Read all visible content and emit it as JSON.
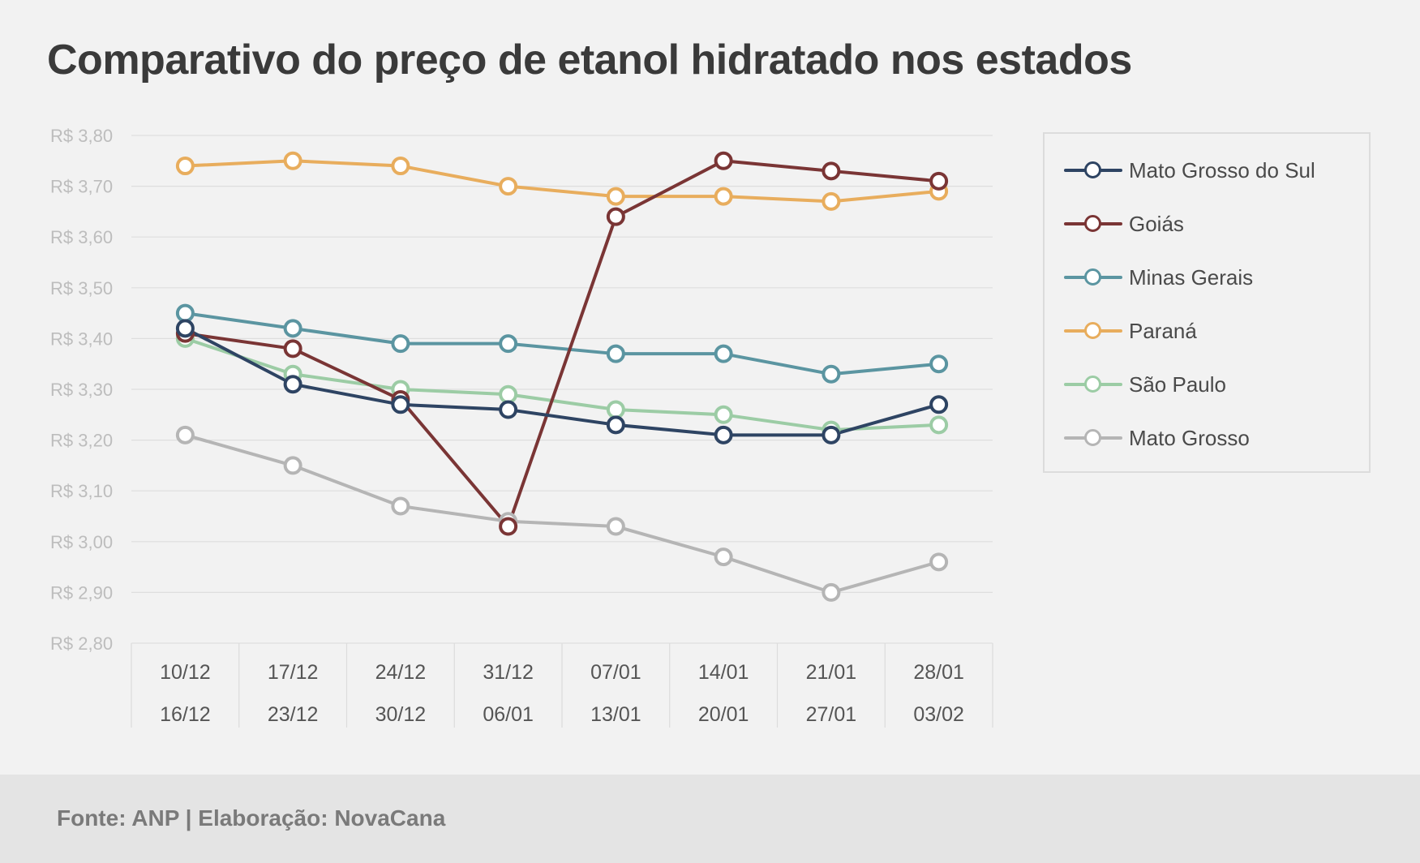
{
  "title": "Comparativo do preço de etanol hidratado nos estados",
  "source": "Fonte: ANP | Elaboração: NovaCana",
  "chart_data": {
    "type": "line",
    "title": "Comparativo do preço de etanol hidratado nos estados",
    "categories": [
      [
        "10/12",
        "16/12"
      ],
      [
        "17/12",
        "23/12"
      ],
      [
        "24/12",
        "30/12"
      ],
      [
        "31/12",
        "06/01"
      ],
      [
        "07/01",
        "13/01"
      ],
      [
        "14/01",
        "20/01"
      ],
      [
        "21/01",
        "27/01"
      ],
      [
        "28/01",
        "03/02"
      ]
    ],
    "ylim": [
      2.8,
      3.8
    ],
    "yticks": [
      2.8,
      2.9,
      3.0,
      3.1,
      3.2,
      3.3,
      3.4,
      3.5,
      3.6,
      3.7,
      3.8
    ],
    "ytick_labels": [
      "R$ 2,80",
      "R$ 2,90",
      "R$ 3,00",
      "R$ 3,10",
      "R$ 3,20",
      "R$ 3,30",
      "R$ 3,40",
      "R$ 3,50",
      "R$ 3,60",
      "R$ 3,70",
      "R$ 3,80"
    ],
    "grid": true,
    "legend_position": "right",
    "series": [
      {
        "name": "Mato Grosso do Sul",
        "color": "#2e4463",
        "values": [
          3.42,
          3.31,
          3.27,
          3.26,
          3.23,
          3.21,
          3.21,
          3.27
        ]
      },
      {
        "name": "Goiás",
        "color": "#7a3535",
        "values": [
          3.41,
          3.38,
          3.28,
          3.03,
          3.64,
          3.75,
          3.73,
          3.71
        ]
      },
      {
        "name": "Minas Gerais",
        "color": "#5b95a1",
        "values": [
          3.45,
          3.42,
          3.39,
          3.39,
          3.37,
          3.37,
          3.33,
          3.35
        ]
      },
      {
        "name": "Paraná",
        "color": "#e8ad5d",
        "values": [
          3.74,
          3.75,
          3.74,
          3.7,
          3.68,
          3.68,
          3.67,
          3.69
        ]
      },
      {
        "name": "São Paulo",
        "color": "#9ccca5",
        "values": [
          3.4,
          3.33,
          3.3,
          3.29,
          3.26,
          3.25,
          3.22,
          3.23
        ]
      },
      {
        "name": "Mato Grosso",
        "color": "#b5b5b5",
        "values": [
          3.21,
          3.15,
          3.07,
          3.04,
          3.03,
          2.97,
          2.9,
          2.96
        ]
      }
    ],
    "draw_order": [
      5,
      4,
      2,
      3,
      1,
      0
    ]
  }
}
